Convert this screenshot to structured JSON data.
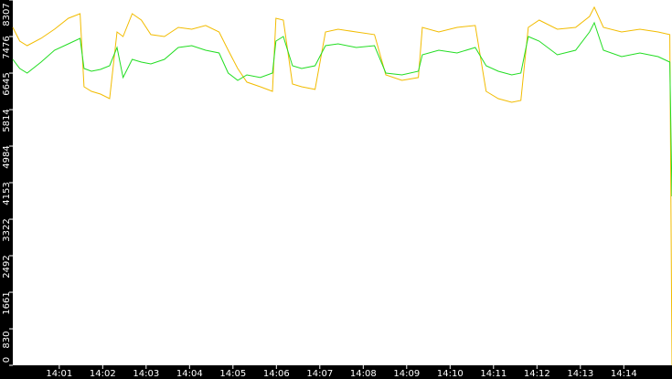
{
  "chart_data": {
    "type": "line",
    "x": [
      -0.07,
      0.09,
      0.26,
      0.58,
      0.89,
      1.21,
      1.48,
      1.57,
      1.74,
      1.95,
      2.16,
      2.33,
      2.47,
      2.68,
      2.89,
      3.11,
      3.42,
      3.74,
      4.05,
      4.37,
      4.68,
      4.89,
      5.11,
      5.32,
      5.63,
      5.91,
      5.99,
      6.16,
      6.37,
      6.58,
      6.89,
      7.13,
      7.42,
      7.84,
      8.26,
      8.52,
      8.89,
      9.27,
      9.36,
      9.74,
      10.16,
      10.58,
      10.83,
      11.11,
      11.42,
      11.63,
      11.8,
      12.05,
      12.47,
      12.89,
      13.21,
      13.32,
      13.53,
      13.95,
      14.37,
      14.79,
      15.06,
      15.11
    ],
    "series": [
      {
        "color": "#f2bc00",
        "values": [
          7684,
          7373,
          7269,
          7435,
          7643,
          7892,
          7996,
          6335,
          6231,
          6168,
          6064,
          7581,
          7477,
          7996,
          7851,
          7519,
          7477,
          7685,
          7643,
          7727,
          7581,
          7165,
          6750,
          6439,
          6335,
          6231,
          7892,
          7851,
          6397,
          6335,
          6273,
          7581,
          7643,
          7581,
          7519,
          6605,
          6480,
          6543,
          7685,
          7581,
          7685,
          7727,
          6231,
          6064,
          5982,
          6023,
          7685,
          7851,
          7643,
          7685,
          7934,
          8142,
          7685,
          7581,
          7643,
          7581,
          7519,
          0
        ]
      },
      {
        "color": "#22dd22",
        "values": [
          6958,
          6750,
          6646,
          6895,
          7165,
          7311,
          7435,
          6750,
          6688,
          6729,
          6812,
          7228,
          6543,
          6958,
          6895,
          6854,
          6958,
          7228,
          7269,
          7165,
          7103,
          6646,
          6480,
          6605,
          6543,
          6646,
          7373,
          7477,
          6812,
          6750,
          6812,
          7269,
          7311,
          7228,
          7269,
          6646,
          6605,
          6688,
          7061,
          7165,
          7103,
          7228,
          6812,
          6688,
          6605,
          6646,
          7477,
          7373,
          7061,
          7165,
          7581,
          7789,
          7165,
          7020,
          7103,
          7020,
          6895,
          3843
        ]
      }
    ],
    "xlim": [
      -0.07,
      15.11
    ],
    "xticks": [
      {
        "value": 1,
        "label": "14:01"
      },
      {
        "value": 2,
        "label": "14:02"
      },
      {
        "value": 3,
        "label": "14:03"
      },
      {
        "value": 4,
        "label": "14:04"
      },
      {
        "value": 5,
        "label": "14:05"
      },
      {
        "value": 6,
        "label": "14:06"
      },
      {
        "value": 7,
        "label": "14:07"
      },
      {
        "value": 8,
        "label": "14:08"
      },
      {
        "value": 9,
        "label": "14:09"
      },
      {
        "value": 10,
        "label": "14:10"
      },
      {
        "value": 11,
        "label": "14:11"
      },
      {
        "value": 12,
        "label": "14:12"
      },
      {
        "value": 13,
        "label": "14:13"
      },
      {
        "value": 14,
        "label": "14:14"
      }
    ],
    "ylim": [
      0,
      8307
    ],
    "yticks": [
      0,
      830,
      1661,
      2492,
      3322,
      4153,
      4984,
      5814,
      6645,
      7476,
      8307
    ]
  }
}
